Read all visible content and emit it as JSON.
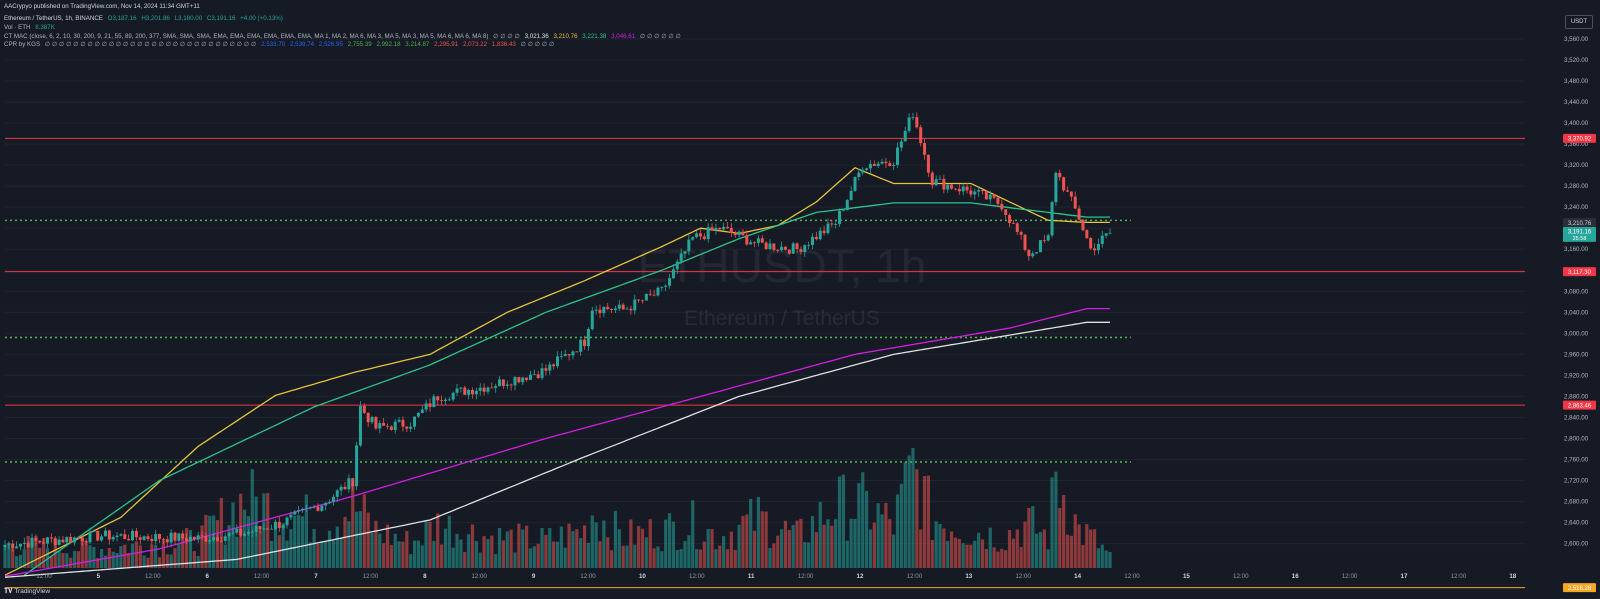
{
  "published": "AACrypyo published on TradingView.com, Nov 14, 2024 11:34 GMT+11",
  "symbol_line": {
    "name": "Ethereum / TetherUS, 1h, BINANCE",
    "open": "O3,187.16",
    "high": "H3,201.86",
    "low": "L3,180.00",
    "close": "C3,191.16",
    "change": "+4.00 (+0.13%)"
  },
  "vol_line": {
    "label": "Vol · ETH",
    "value": "8.387K"
  },
  "mac_line": {
    "label": "CT MAC (close, 6, 2, 10, 30, 200, 9, 21, 55, 89, 200, 377, SMA, SMA, SMA, EMA, EMA, EMA, EMA, EMA, EMA, MA 1, MA 2, MA 6, MA 3, MA 5, MA 3, MA 5, MA 6, MA 6, MA 8)",
    "nulls": "∅ ∅ ∅ ∅",
    "v1": "3,021.36",
    "v2": "3,210.76",
    "v3": "3,221.38",
    "v4": "3,046.61",
    "tail": "∅ ∅ ∅ ∅ ∅ ∅"
  },
  "cpr_line": {
    "label": "CPR by KGS",
    "nulls": "∅ ∅ ∅ ∅ ∅ ∅ ∅ ∅ ∅ ∅ ∅ ∅ ∅ ∅ ∅ ∅ ∅ ∅ ∅ ∅ ∅ ∅ ∅ ∅ ∅ ∅ ∅ ∅ ∅ ∅",
    "v1": "2,533.70",
    "v2": "2,539.74",
    "v3": "2,526.95",
    "v4": "2,755.39",
    "v5": "2,992.18",
    "v6": "3,214.87",
    "v7": "2,295.91",
    "v8": "2,073.22",
    "v9": "1,836.43",
    "tail": "∅ ∅ ∅ ∅ ∅"
  },
  "currency": "USDT",
  "watermark": {
    "symbol": "ETHUSDT, 1h",
    "name": "Ethereum / TetherUS"
  },
  "tradingview_label": "TradingView",
  "colors": {
    "background": "#161a25",
    "up": "#26a69a",
    "down": "#ef5350",
    "resistance_line": "#f23645",
    "cpr_dotted": "#4caf50",
    "ma_yellow": "#e5c43a",
    "ma_green": "#2bc48a",
    "ma_purple": "#d01fe0",
    "ma_white": "#e0e0e0",
    "orange_line": "#f5a623"
  },
  "chart_data": {
    "type": "candlestick",
    "symbol": "ETHUSDT",
    "timeframe": "1h",
    "price_axis": {
      "range": [
        2546,
        3596
      ],
      "tick_labels": [
        "3,560.00",
        "3,520.00",
        "3,480.00",
        "3,440.00",
        "3,400.00",
        "3,360.00",
        "3,320.00",
        "3,280.00",
        "3,240.00",
        "3,200.00",
        "3,160.00",
        "3,120.00",
        "3,080.00",
        "3,040.00",
        "3,000.00",
        "2,960.00",
        "2,920.00",
        "2,880.00",
        "2,840.00",
        "2,800.00",
        "2,760.00",
        "2,720.00",
        "2,680.00",
        "2,640.00",
        "2,600.00"
      ]
    },
    "time_axis": {
      "labels": [
        "12:00",
        "5",
        "12:00",
        "6",
        "12:00",
        "7",
        "12:00",
        "8",
        "12:00",
        "9",
        "12:00",
        "10",
        "12:00",
        "11",
        "12:00",
        "12",
        "12:00",
        "13",
        "12:00",
        "14",
        "12:00",
        "15",
        "12:00",
        "16",
        "12:00",
        "17",
        "12:00",
        "18"
      ]
    },
    "horizontal_levels": [
      {
        "label": "3,370.92",
        "value": 3370.92,
        "style": "solid",
        "color": "#f23645"
      },
      {
        "label": "3,117.30",
        "value": 3117.3,
        "style": "solid",
        "color": "#f23645"
      },
      {
        "label": "2,863.46",
        "value": 2863.46,
        "style": "solid",
        "color": "#f23645"
      },
      {
        "label": "2,516.28",
        "value": 2516.28,
        "style": "solid",
        "color": "#f5a623"
      },
      {
        "value": 3214.87,
        "style": "dotted",
        "color": "#4caf50"
      },
      {
        "value": 2992.18,
        "style": "dotted",
        "color": "#4caf50"
      },
      {
        "value": 2755.39,
        "style": "dotted",
        "color": "#4caf50"
      }
    ],
    "last_price": {
      "label": "3,191.16",
      "sub": "25:58",
      "value": 3191.16
    },
    "ma_labels": [
      "3,210.76"
    ],
    "ma_lines": [
      {
        "color": "#e5c43a",
        "x": [
          0,
          30,
          50,
          70,
          90,
          110,
          130,
          150,
          170,
          180,
          190,
          200,
          210,
          220,
          230,
          250,
          270,
          280
        ],
        "y": [
          2540,
          2650,
          2785,
          2882,
          2925,
          2960,
          3040,
          3100,
          3165,
          3200,
          3190,
          3205,
          3250,
          3315,
          3285,
          3285,
          3215,
          3211
        ]
      },
      {
        "color": "#2bc48a",
        "x": [
          5,
          40,
          80,
          110,
          140,
          170,
          190,
          210,
          230,
          250,
          280
        ],
        "y": [
          2540,
          2720,
          2860,
          2940,
          3040,
          3120,
          3180,
          3230,
          3248,
          3248,
          3221
        ]
      },
      {
        "color": "#d01fe0",
        "x": [
          0,
          40,
          90,
          140,
          180,
          220,
          260,
          280
        ],
        "y": [
          2538,
          2590,
          2690,
          2800,
          2880,
          2960,
          3010,
          3047
        ]
      },
      {
        "color": "#e0e0e0",
        "x": [
          0,
          60,
          110,
          150,
          190,
          230,
          280
        ],
        "y": [
          2536,
          2570,
          2645,
          2765,
          2880,
          2960,
          3021
        ]
      }
    ],
    "anchors": [
      {
        "x": 0,
        "price": 2598,
        "vol": 0.18
      },
      {
        "x": 25,
        "price": 2615,
        "vol": 0.16
      },
      {
        "x": 50,
        "price": 2610,
        "vol": 0.22
      },
      {
        "x": 62,
        "price": 2620,
        "vol": 0.55
      },
      {
        "x": 72,
        "price": 2640,
        "vol": 0.45
      },
      {
        "x": 83,
        "price": 2680,
        "vol": 0.35
      },
      {
        "x": 90,
        "price": 2720,
        "vol": 0.5
      },
      {
        "x": 92,
        "price": 2860,
        "vol": 0.45
      },
      {
        "x": 96,
        "price": 2820,
        "vol": 0.3
      },
      {
        "x": 105,
        "price": 2830,
        "vol": 0.2
      },
      {
        "x": 112,
        "price": 2880,
        "vol": 0.35
      },
      {
        "x": 125,
        "price": 2900,
        "vol": 0.25
      },
      {
        "x": 140,
        "price": 2930,
        "vol": 0.22
      },
      {
        "x": 150,
        "price": 2985,
        "vol": 0.3
      },
      {
        "x": 152,
        "price": 3050,
        "vol": 0.45
      },
      {
        "x": 160,
        "price": 3045,
        "vol": 0.25
      },
      {
        "x": 170,
        "price": 3080,
        "vol": 0.3
      },
      {
        "x": 178,
        "price": 3180,
        "vol": 0.35
      },
      {
        "x": 185,
        "price": 3200,
        "vol": 0.25
      },
      {
        "x": 195,
        "price": 3170,
        "vol": 0.4
      },
      {
        "x": 205,
        "price": 3160,
        "vol": 0.25
      },
      {
        "x": 215,
        "price": 3210,
        "vol": 0.5
      },
      {
        "x": 222,
        "price": 3320,
        "vol": 0.5
      },
      {
        "x": 230,
        "price": 3330,
        "vol": 0.35
      },
      {
        "x": 235,
        "price": 3420,
        "vol": 0.8
      },
      {
        "x": 240,
        "price": 3290,
        "vol": 0.4
      },
      {
        "x": 250,
        "price": 3270,
        "vol": 0.3
      },
      {
        "x": 258,
        "price": 3245,
        "vol": 0.25
      },
      {
        "x": 265,
        "price": 3150,
        "vol": 0.35
      },
      {
        "x": 270,
        "price": 3180,
        "vol": 0.25
      },
      {
        "x": 272,
        "price": 3310,
        "vol": 0.75
      },
      {
        "x": 278,
        "price": 3220,
        "vol": 0.3
      },
      {
        "x": 281,
        "price": 3160,
        "vol": 0.25
      },
      {
        "x": 286,
        "price": 3191,
        "vol": 0.1
      }
    ]
  }
}
